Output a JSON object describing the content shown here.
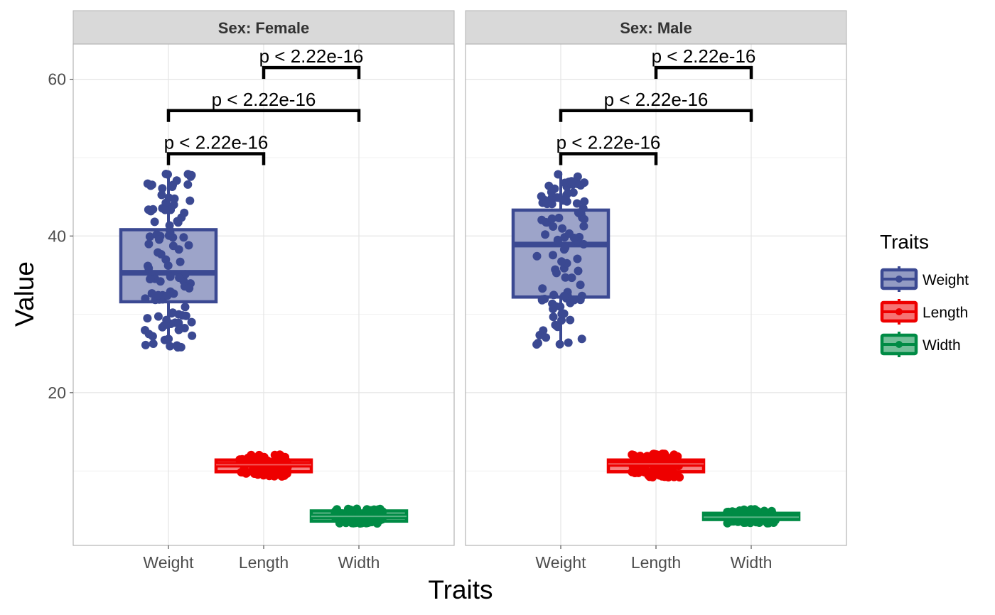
{
  "chart_data": {
    "type": "boxplot",
    "xlabel": "Traits",
    "ylabel": "Value",
    "ylim": [
      0.5,
      64.5
    ],
    "y_ticks": [
      20,
      40,
      60
    ],
    "grid": true,
    "legend": {
      "title": "Traits",
      "position": "right",
      "entries": [
        {
          "name": "Weight",
          "color": "#3B4992"
        },
        {
          "name": "Length",
          "color": "#EE0000"
        },
        {
          "name": "Width",
          "color": "#008B45"
        }
      ]
    },
    "categories": [
      "Weight",
      "Length",
      "Width"
    ],
    "panels": [
      {
        "strip": "Sex: Female",
        "boxes": [
          {
            "trait": "Weight",
            "min": 25.7,
            "q1": 31.6,
            "median": 35.3,
            "q3": 40.8,
            "max": 48.3
          },
          {
            "trait": "Length",
            "min": 9.3,
            "q1": 9.9,
            "median": 10.8,
            "q3": 11.4,
            "max": 12.1
          },
          {
            "trait": "Width",
            "min": 3.3,
            "q1": 3.6,
            "median": 4.2,
            "q3": 4.9,
            "max": 5.2
          }
        ],
        "comparisons": [
          {
            "from": "Weight",
            "to": "Length",
            "y": 50.5,
            "label": "p < 2.22e-16"
          },
          {
            "from": "Weight",
            "to": "Width",
            "y": 56.0,
            "label": "p < 2.22e-16"
          },
          {
            "from": "Length",
            "to": "Width",
            "y": 61.5,
            "label": "p < 2.22e-16"
          }
        ]
      },
      {
        "strip": "Sex: Male",
        "boxes": [
          {
            "trait": "Weight",
            "min": 26.0,
            "q1": 32.2,
            "median": 38.9,
            "q3": 43.3,
            "max": 48.2
          },
          {
            "trait": "Length",
            "min": 9.2,
            "q1": 9.9,
            "median": 10.9,
            "q3": 11.4,
            "max": 12.2
          },
          {
            "trait": "Width",
            "min": 3.3,
            "q1": 3.8,
            "median": 4.1,
            "q3": 4.6,
            "max": 5.1
          }
        ],
        "comparisons": [
          {
            "from": "Weight",
            "to": "Length",
            "y": 50.5,
            "label": "p < 2.22e-16"
          },
          {
            "from": "Weight",
            "to": "Width",
            "y": 56.0,
            "label": "p < 2.22e-16"
          },
          {
            "from": "Length",
            "to": "Width",
            "y": 61.5,
            "label": "p < 2.22e-16"
          }
        ]
      }
    ]
  }
}
